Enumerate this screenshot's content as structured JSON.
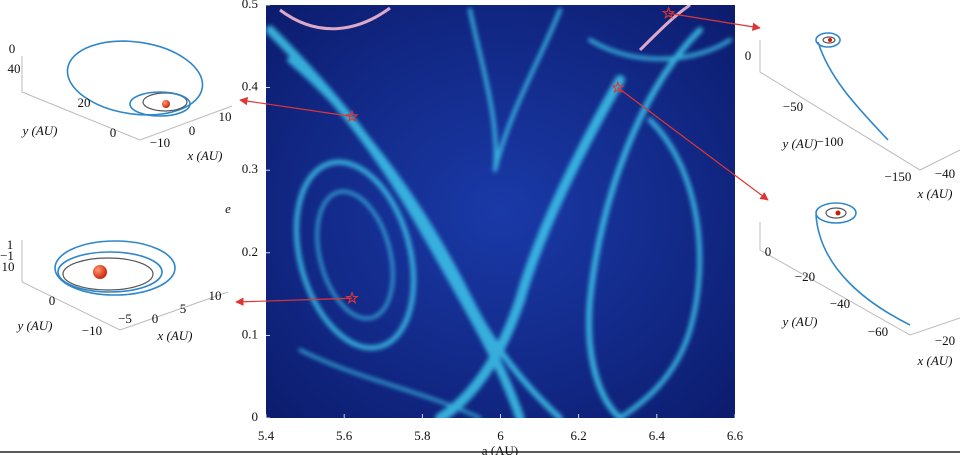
{
  "chart_data": [
    {
      "type": "scatter",
      "ylabel": "e",
      "xlabel": "a (AU)",
      "xlim": [
        5.4,
        6.6
      ],
      "xticks": [
        5.4,
        5.6,
        5.8,
        6,
        6.2,
        6.4,
        6.6
      ],
      "ylim": [
        0,
        0.5
      ],
      "yticks": [
        0,
        0.1,
        0.2,
        0.3,
        0.4,
        0.5
      ],
      "series": [
        {
          "color": "#e03535",
          "x": [
            5.62,
            5.62,
            6.3,
            6.43
          ],
          "values": [
            0.365,
            0.145,
            0.4,
            0.49
          ]
        }
      ]
    },
    {
      "type": "orbit3d",
      "xlabel": "x (AU)",
      "ylabel": "y (AU)",
      "xticks": [
        {
          "value": -10,
          "label": "−10"
        },
        0,
        10
      ],
      "yticks": [
        40,
        20,
        0
      ],
      "zticks": [
        0
      ]
    },
    {
      "type": "orbit3d",
      "xlabel": "x (AU)",
      "ylabel": "y (AU)",
      "xticks": [
        {
          "value": -5,
          "label": "−5"
        },
        0,
        5,
        10
      ],
      "yticks": [
        10,
        0,
        {
          "value": -10,
          "label": "−10"
        }
      ],
      "zticks": [
        1,
        {
          "value": -1,
          "label": "−1"
        }
      ]
    },
    {
      "type": "orbit3d",
      "xlabel": "x (AU)",
      "ylabel": "y (AU)",
      "xticks": [
        {
          "value": -40,
          "label": "−40"
        }
      ],
      "yticks": [
        0,
        {
          "value": -50,
          "label": "−50"
        },
        {
          "value": -100,
          "label": "−100"
        },
        {
          "value": -150,
          "label": "−150"
        }
      ],
      "zticks": []
    },
    {
      "type": "orbit3d",
      "xlabel": "x (AU)",
      "ylabel": "y (AU)",
      "xticks": [
        {
          "value": -20,
          "label": "−20"
        }
      ],
      "yticks": [
        0,
        {
          "value": -20,
          "label": "−20"
        },
        {
          "value": -40,
          "label": "−40"
        },
        {
          "value": -60,
          "label": "−60"
        }
      ],
      "zticks": []
    }
  ]
}
